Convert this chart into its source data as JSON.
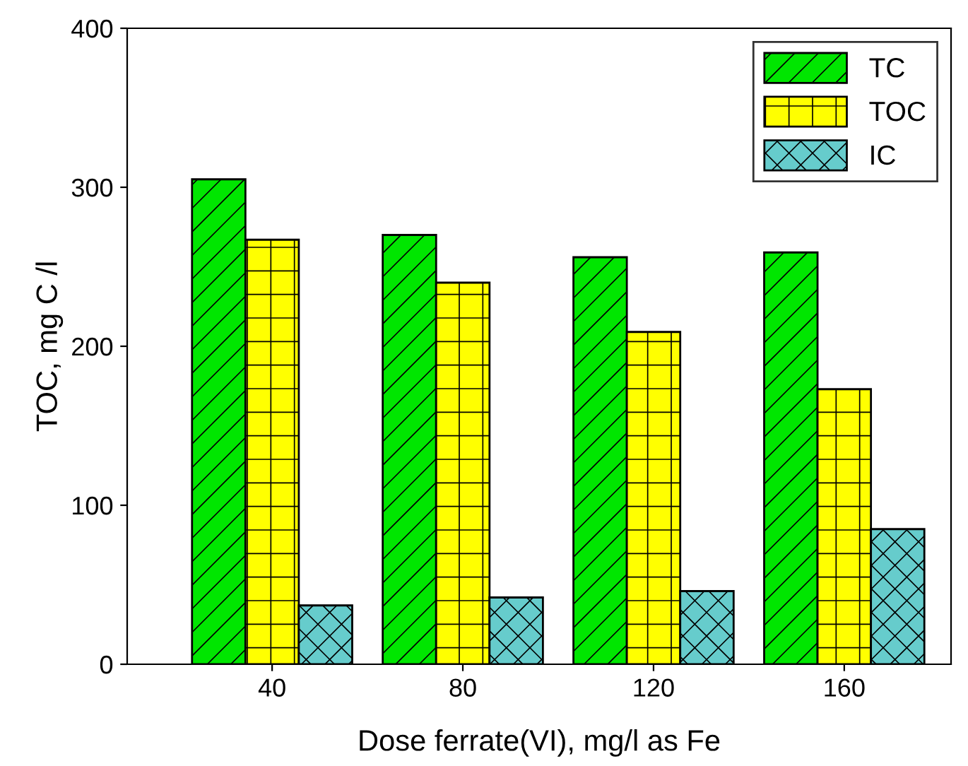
{
  "chart_data": {
    "type": "bar",
    "xlabel": "Dose ferrate(VI), mg/l as Fe",
    "ylabel": "TOC, mg C /l",
    "categories": [
      "40",
      "80",
      "120",
      "160"
    ],
    "series": [
      {
        "name": "TC",
        "color": "#00e600",
        "values": [
          305,
          270,
          256,
          259
        ]
      },
      {
        "name": "TOC",
        "color": "#ffff00",
        "values": [
          267,
          240,
          209,
          173
        ]
      },
      {
        "name": "IC",
        "color": "#66cccc",
        "values": [
          37,
          42,
          46,
          85
        ]
      }
    ],
    "ylim": [
      0,
      400
    ],
    "yticks": [
      0,
      100,
      200,
      300,
      400
    ],
    "grid": false,
    "legend": "top right"
  }
}
